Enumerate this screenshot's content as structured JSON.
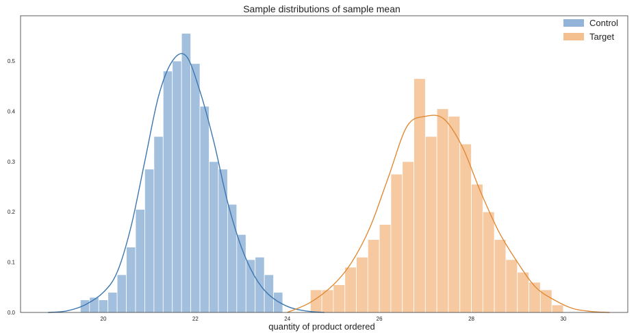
{
  "chart_data": {
    "type": "histogram",
    "title": "Sample distributions of sample mean",
    "xlabel": "quantity of product ordered",
    "ylabel": "",
    "xlim": [
      18.2,
      31.4
    ],
    "ylim": [
      0,
      0.59
    ],
    "x_ticks": [
      20,
      22,
      24,
      26,
      28,
      30
    ],
    "x_tick_labels": [
      "20",
      "22",
      "24",
      "26",
      "28",
      "30"
    ],
    "y_ticks": [
      0.0,
      0.1,
      0.2,
      0.3,
      0.4,
      0.5
    ],
    "y_tick_labels": [
      "0.0",
      "0.1",
      "0.2",
      "0.3",
      "0.4",
      "0.5"
    ],
    "grid": false,
    "legend_position": "top-right",
    "series": [
      {
        "name": "Control",
        "color": "#92b4d8",
        "line_color": "#3b76af",
        "bin_width": 0.2,
        "bins_start": [
          19.5,
          19.7,
          19.9,
          20.1,
          20.3,
          20.5,
          20.7,
          20.9,
          21.1,
          21.3,
          21.5,
          21.7,
          21.9,
          22.1,
          22.3,
          22.5,
          22.7,
          22.9,
          23.1,
          23.3,
          23.5,
          23.7
        ],
        "values": [
          0.025,
          0.03,
          0.025,
          0.04,
          0.075,
          0.13,
          0.205,
          0.285,
          0.35,
          0.48,
          0.5,
          0.555,
          0.495,
          0.41,
          0.3,
          0.285,
          0.215,
          0.155,
          0.105,
          0.11,
          0.075,
          0.04
        ],
        "kde_x": [
          18.8,
          19.2,
          19.6,
          20.0,
          20.3,
          20.6,
          20.9,
          21.2,
          21.5,
          21.8,
          22.1,
          22.4,
          22.7,
          23.0,
          23.3,
          23.6,
          24.0,
          24.4,
          24.8
        ],
        "kde_y": [
          0.0,
          0.003,
          0.015,
          0.04,
          0.08,
          0.17,
          0.3,
          0.43,
          0.5,
          0.51,
          0.44,
          0.34,
          0.22,
          0.13,
          0.07,
          0.035,
          0.012,
          0.003,
          0.0
        ]
      },
      {
        "name": "Target",
        "color": "#f5c08f",
        "line_color": "#e08a36",
        "bin_width": 0.25,
        "bins_start": [
          24.5,
          24.75,
          25.0,
          25.25,
          25.5,
          25.75,
          26.0,
          26.25,
          26.5,
          26.75,
          27.0,
          27.25,
          27.5,
          27.75,
          28.0,
          28.25,
          28.5,
          28.75,
          29.0,
          29.25,
          29.5,
          29.75
        ],
        "values": [
          0.045,
          0.045,
          0.055,
          0.09,
          0.11,
          0.145,
          0.175,
          0.275,
          0.3,
          0.465,
          0.35,
          0.405,
          0.39,
          0.335,
          0.255,
          0.2,
          0.145,
          0.105,
          0.08,
          0.06,
          0.045,
          0.015
        ],
        "kde_x": [
          24.0,
          24.5,
          25.0,
          25.4,
          25.8,
          26.2,
          26.6,
          27.0,
          27.4,
          27.8,
          28.2,
          28.6,
          29.0,
          29.4,
          29.8,
          30.2,
          30.6,
          31.0
        ],
        "kde_y": [
          0.0,
          0.02,
          0.055,
          0.1,
          0.17,
          0.27,
          0.37,
          0.39,
          0.385,
          0.33,
          0.24,
          0.16,
          0.1,
          0.05,
          0.025,
          0.008,
          0.002,
          0.0
        ]
      }
    ]
  }
}
